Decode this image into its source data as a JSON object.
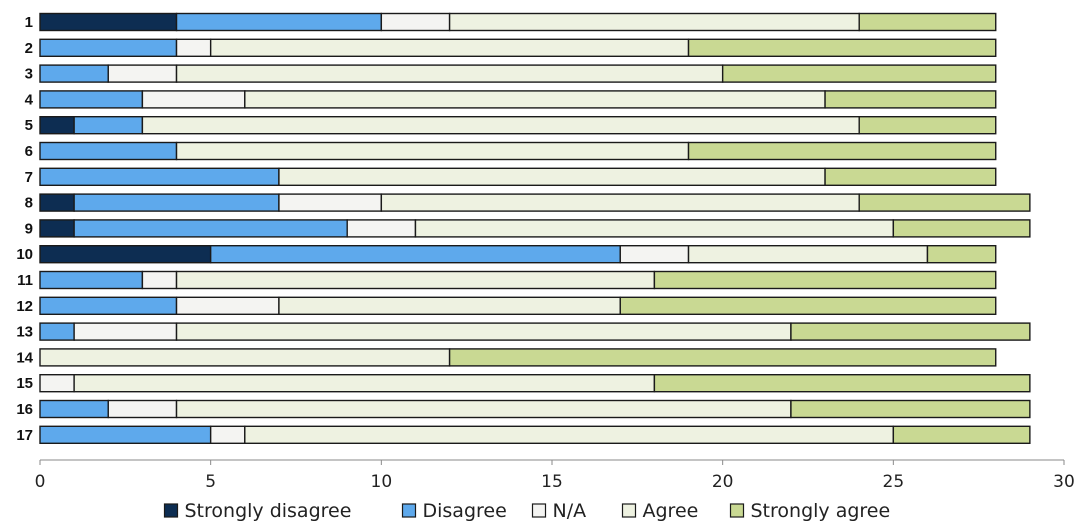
{
  "chart_data": {
    "type": "bar",
    "orientation": "horizontal",
    "stacked": true,
    "title": "",
    "xlabel": "",
    "ylabel": "",
    "xlim": [
      0,
      30
    ],
    "x_ticks": [
      0,
      5,
      10,
      15,
      20,
      25,
      30
    ],
    "grid": false,
    "legend_position": "bottom",
    "categories": [
      "1",
      "2",
      "3",
      "4",
      "5",
      "6",
      "7",
      "8",
      "9",
      "10",
      "11",
      "12",
      "13",
      "14",
      "15",
      "16",
      "17"
    ],
    "series": [
      {
        "name": "Strongly disagree",
        "color": "#0d2d52",
        "values": [
          4,
          0,
          0,
          0,
          1,
          0,
          0,
          1,
          1,
          5,
          0,
          0,
          0,
          0,
          0,
          0,
          0
        ]
      },
      {
        "name": "Disagree",
        "color": "#5ea9ec",
        "values": [
          6,
          4,
          2,
          3,
          2,
          4,
          7,
          6,
          8,
          12,
          3,
          4,
          1,
          0,
          0,
          2,
          5
        ]
      },
      {
        "name": "N/A",
        "color": "#f4f4f2",
        "values": [
          2,
          1,
          2,
          3,
          0,
          0,
          0,
          3,
          2,
          2,
          1,
          3,
          3,
          0,
          1,
          2,
          1
        ]
      },
      {
        "name": "Agree",
        "color": "#eef2e1",
        "values": [
          12,
          14,
          16,
          17,
          21,
          15,
          16,
          14,
          14,
          7,
          14,
          10,
          18,
          12,
          17,
          18,
          19
        ]
      },
      {
        "name": "Strongly agree",
        "color": "#c9d993",
        "values": [
          4,
          9,
          8,
          5,
          4,
          9,
          5,
          5,
          4,
          2,
          10,
          11,
          7,
          16,
          11,
          7,
          4
        ]
      }
    ]
  }
}
